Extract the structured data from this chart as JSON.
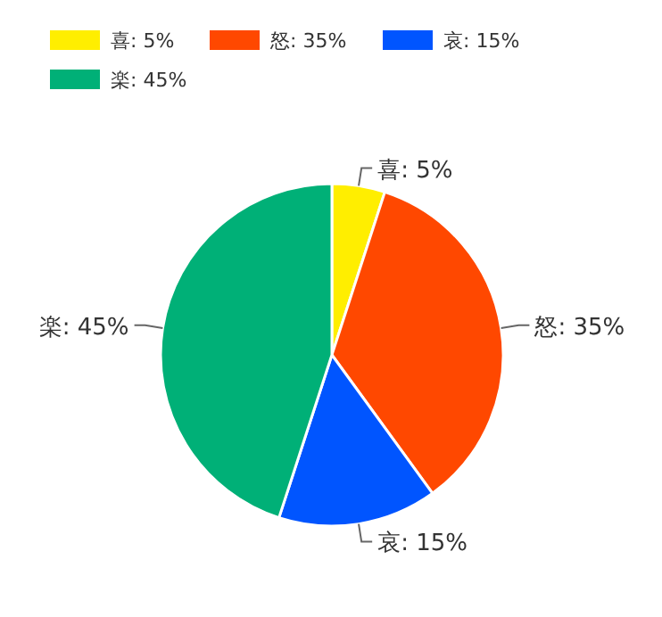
{
  "chart_data": {
    "type": "pie",
    "categories": [
      "喜: 5%",
      "怒: 35%",
      "哀: 15%",
      "楽: 45%"
    ],
    "values": [
      5,
      35,
      15,
      45
    ],
    "colors": [
      "#ffee00",
      "#ff4800",
      "#0055ff",
      "#00b077"
    ],
    "legend": "top left"
  }
}
